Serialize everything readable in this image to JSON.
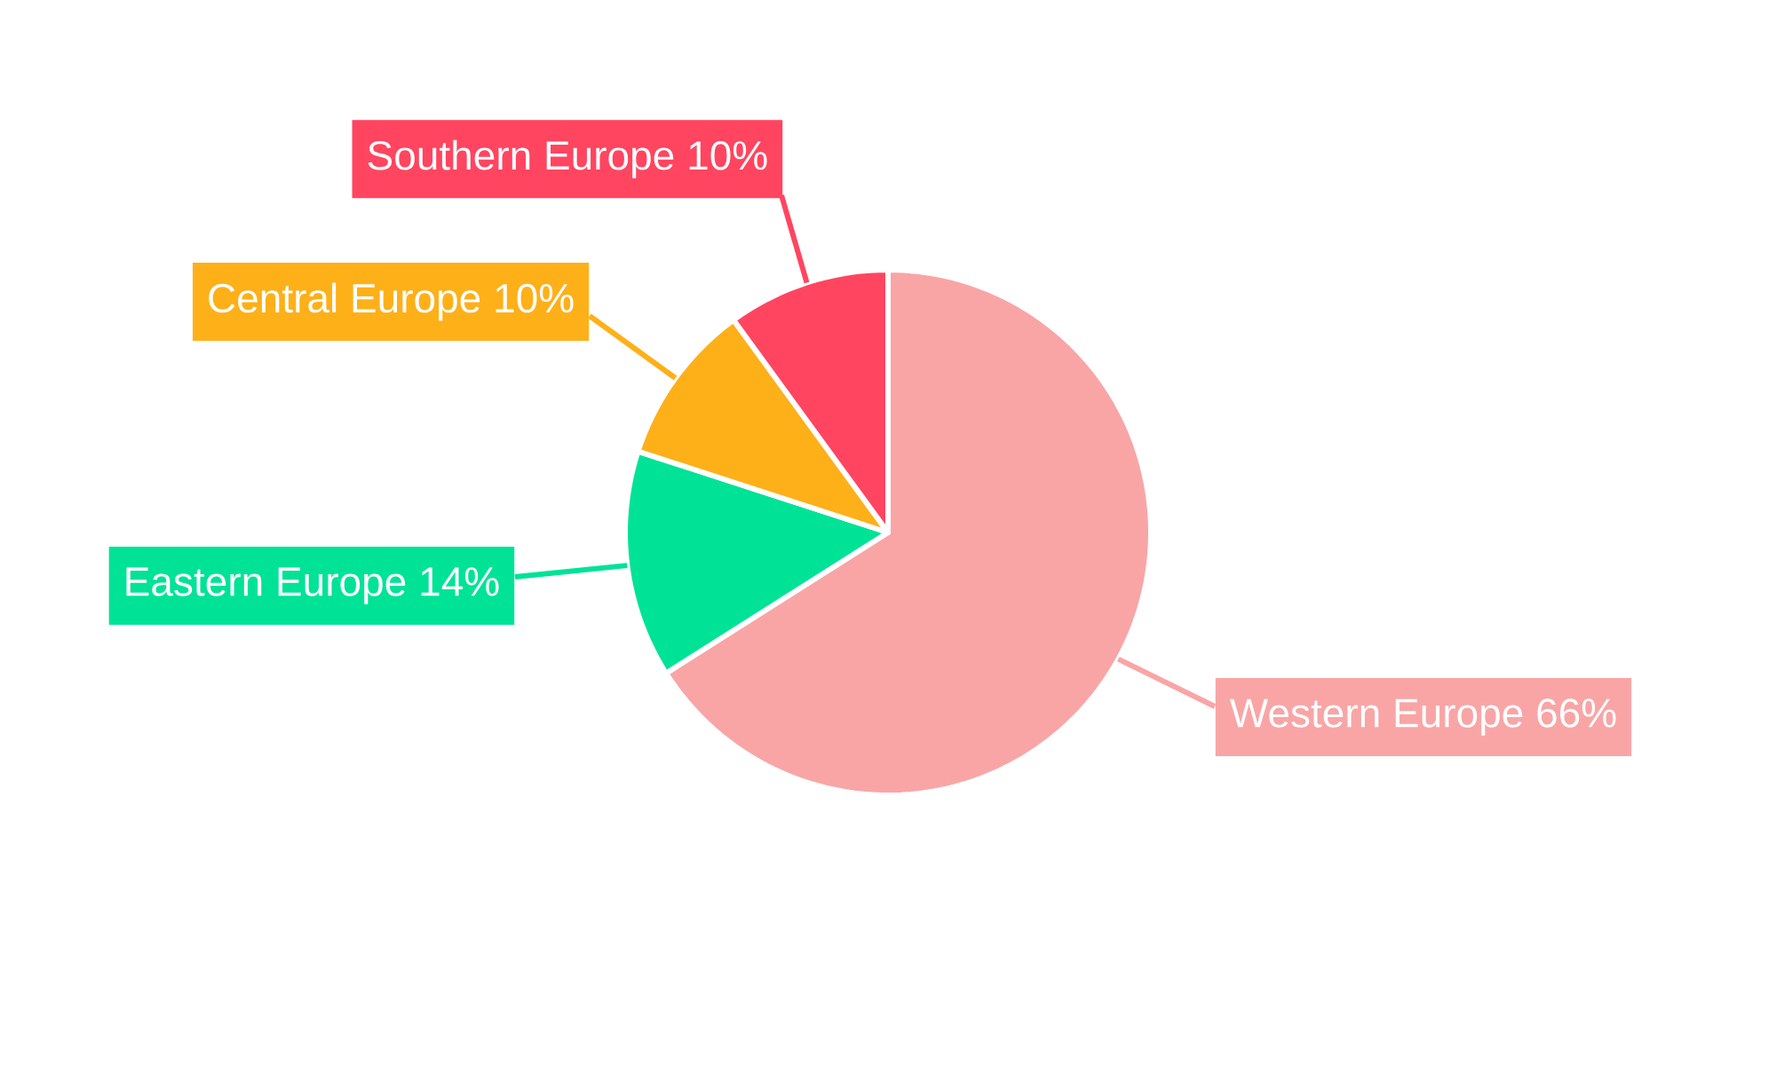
{
  "chart_data": {
    "type": "pie",
    "categories": [
      "Western Europe",
      "Eastern Europe",
      "Central Europe",
      "Southern Europe"
    ],
    "values": [
      66,
      14,
      10,
      10
    ],
    "colors": [
      "#f9a5a6",
      "#00e396",
      "#feb019",
      "#ff4560"
    ],
    "value_labels": [
      "66%",
      "14%",
      "10%",
      "10%"
    ]
  }
}
